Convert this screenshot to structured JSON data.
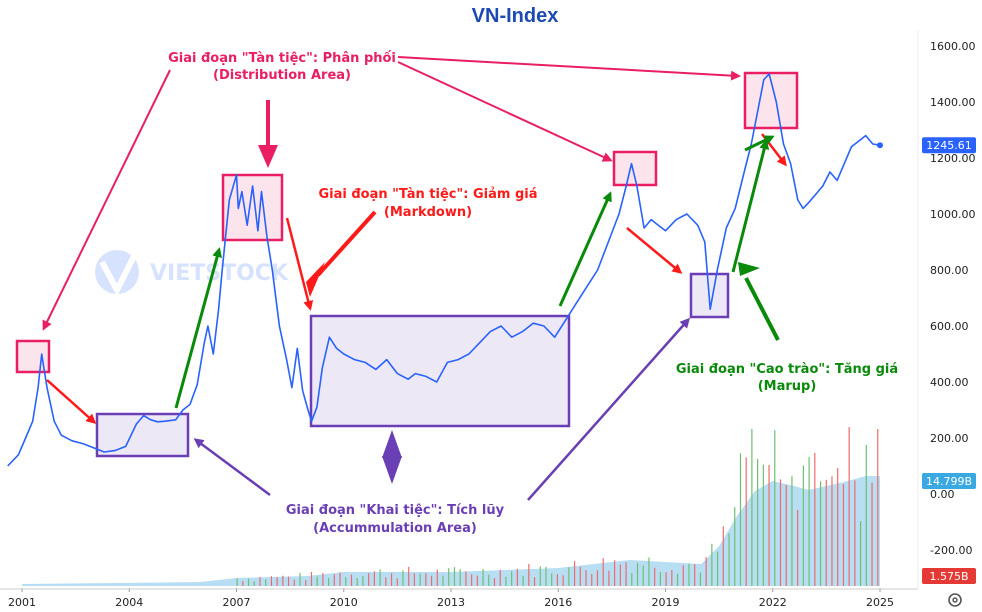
{
  "chart_data": {
    "type": "line",
    "title": "VN-Index",
    "x_ticks": [
      "2001",
      "2004",
      "2007",
      "2010",
      "2013",
      "2016",
      "2019",
      "2022",
      "2025"
    ],
    "y_ticks": [
      "1600.00",
      "1400.00",
      "1200.00",
      "1000.00",
      "800.00",
      "600.00",
      "400.00",
      "200.00",
      "0.00",
      "-200.00"
    ],
    "ylim": [
      -330,
      1710
    ],
    "xlim": [
      2000.5,
      2025.6
    ],
    "grid": false,
    "series": [
      {
        "type": "line",
        "color": "#2962ff",
        "x": [
          2000.6,
          2000.9,
          2001.1,
          2001.3,
          2001.45,
          2001.55,
          2001.7,
          2001.9,
          2002.1,
          2002.4,
          2002.7,
          2003.0,
          2003.3,
          2003.6,
          2003.9,
          2004.2,
          2004.4,
          2004.6,
          2004.8,
          2005.0,
          2005.3,
          2005.5,
          2005.7,
          2005.9,
          2006.1,
          2006.2,
          2006.35,
          2006.5,
          2006.6,
          2006.8,
          2007.0,
          2007.05,
          2007.15,
          2007.3,
          2007.45,
          2007.6,
          2007.7,
          2007.85,
          2008.0,
          2008.2,
          2008.4,
          2008.55,
          2008.7,
          2008.85,
          2009.0,
          2009.1,
          2009.25,
          2009.4,
          2009.6,
          2009.8,
          2010.0,
          2010.3,
          2010.6,
          2010.9,
          2011.2,
          2011.5,
          2011.8,
          2012.0,
          2012.3,
          2012.6,
          2012.9,
          2013.2,
          2013.5,
          2013.8,
          2014.1,
          2014.4,
          2014.7,
          2015.0,
          2015.3,
          2015.6,
          2015.9,
          2016.2,
          2016.5,
          2016.8,
          2017.1,
          2017.4,
          2017.7,
          2017.9,
          2018.05,
          2018.2,
          2018.4,
          2018.6,
          2018.8,
          2019.0,
          2019.3,
          2019.6,
          2019.9,
          2020.1,
          2020.25,
          2020.45,
          2020.7,
          2020.95,
          2021.2,
          2021.4,
          2021.6,
          2021.75,
          2021.9,
          2022.1,
          2022.3,
          2022.5,
          2022.7,
          2022.85,
          2023.0,
          2023.2,
          2023.4,
          2023.6,
          2023.8,
          2024.0,
          2024.2,
          2024.4,
          2024.6,
          2024.8,
          2025.0
        ],
        "y": [
          100,
          140,
          200,
          260,
          380,
          500,
          380,
          260,
          210,
          190,
          180,
          165,
          150,
          155,
          170,
          250,
          280,
          265,
          258,
          260,
          265,
          300,
          320,
          390,
          540,
          600,
          500,
          660,
          800,
          1050,
          1140,
          1020,
          1080,
          960,
          1100,
          940,
          1080,
          920,
          800,
          600,
          480,
          380,
          520,
          370,
          300,
          260,
          310,
          450,
          560,
          520,
          500,
          480,
          470,
          445,
          480,
          430,
          410,
          430,
          420,
          400,
          470,
          480,
          500,
          540,
          580,
          600,
          560,
          580,
          610,
          600,
          560,
          620,
          680,
          740,
          800,
          900,
          1000,
          1100,
          1180,
          1100,
          950,
          980,
          960,
          940,
          980,
          1000,
          960,
          900,
          660,
          800,
          950,
          1020,
          1150,
          1250,
          1380,
          1480,
          1500,
          1400,
          1250,
          1180,
          1050,
          1020,
          1040,
          1070,
          1100,
          1150,
          1120,
          1180,
          1240,
          1260,
          1280,
          1250,
          1245.61
        ]
      }
    ],
    "markers": {
      "last_price": "1245.61",
      "volume_high": "14.799B",
      "volume_low": "1.575B"
    },
    "annotations": {
      "distribution": [
        "Giai đoạn \"Tàn tiệc\": Phân phối",
        "(Distribution Area)"
      ],
      "markdown": [
        "Giai đoạn \"Tàn tiệc\": Giảm giá",
        "(Markdown)"
      ],
      "accumulation": [
        "Giai đoạn \"Khai tiệc\": Tích lũy",
        "(Accummulation Area)"
      ],
      "markup": [
        "Giai đoạn \"Cao trào\": Tăng giá",
        "(Marup)"
      ]
    },
    "colors": {
      "price": "#2962ff",
      "distribution": "#e91e63",
      "markdown": "#ff1a1a",
      "accumulation": "#6a3fb5",
      "markup": "#0a8a0a",
      "volume_area": "#9fd3ee",
      "volume_up": "#6fbf73",
      "volume_down": "#ef6b6b"
    },
    "watermark": "VIETSTOCK"
  }
}
